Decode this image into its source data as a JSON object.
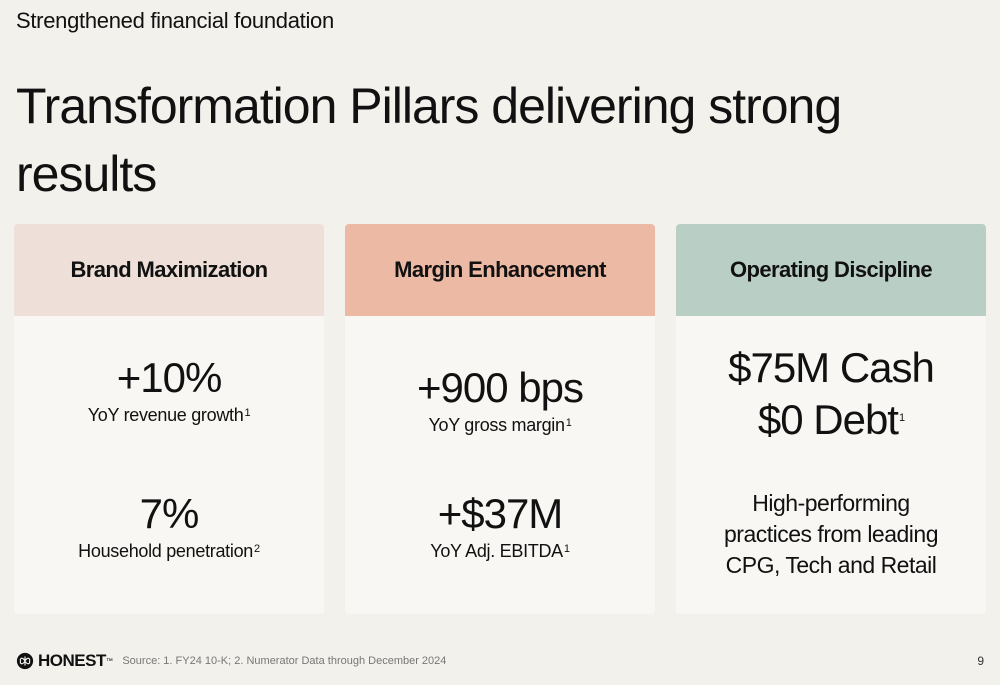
{
  "header": {
    "subtitle": "Strengthened financial foundation",
    "title": "Transformation Pillars delivering strong results"
  },
  "pillars": [
    {
      "heading": "Brand Maximization",
      "metrics": [
        {
          "value": "+10%",
          "label": "YoY revenue growth",
          "note": "1"
        },
        {
          "value": "7%",
          "label": "Household penetration",
          "note": "2"
        }
      ]
    },
    {
      "heading": "Margin Enhancement",
      "metrics": [
        {
          "value": "+900 bps",
          "label": "YoY gross margin",
          "note": "1"
        },
        {
          "value": "+$37M",
          "label": "YoY Adj. EBITDA",
          "note": "1"
        }
      ]
    },
    {
      "heading": "Operating Discipline",
      "cash_line": "$75M Cash",
      "debt_line": "$0 Debt",
      "debt_note": "1",
      "practices": [
        "High-performing",
        "practices from leading",
        "CPG, Tech and Retail"
      ]
    }
  ],
  "footer": {
    "logo_text": "HONEST",
    "logo_tm": "™",
    "source": "Source: 1. FY24 10-K; 2. Numerator Data through December 2024",
    "page_number": "9"
  }
}
